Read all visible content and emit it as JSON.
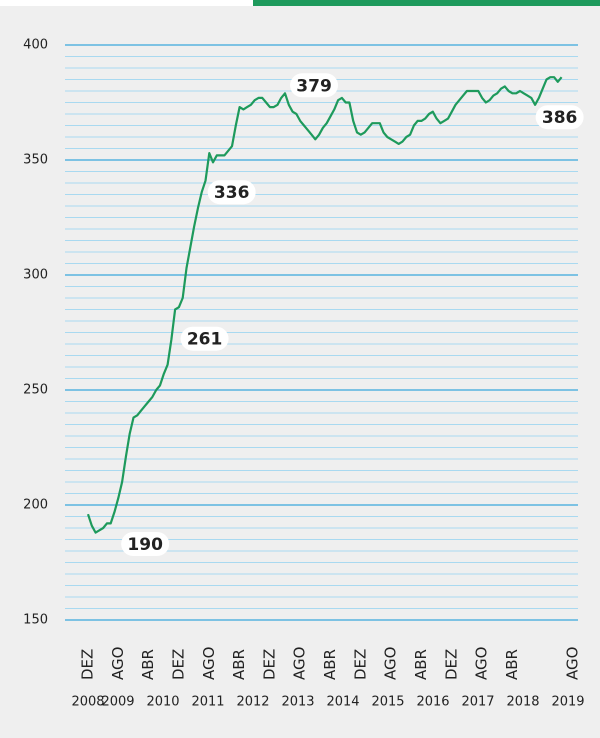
{
  "chart_data": {
    "type": "line",
    "color": "#1e9a5c",
    "x": [
      "2008-12",
      "2009-01",
      "2009-02",
      "2009-03",
      "2009-04",
      "2009-05",
      "2009-06",
      "2009-07",
      "2009-08",
      "2009-09",
      "2009-10",
      "2009-11",
      "2009-12",
      "2010-01",
      "2010-02",
      "2010-03",
      "2010-04",
      "2010-05",
      "2010-06",
      "2010-07",
      "2010-08",
      "2010-09",
      "2010-10",
      "2010-11",
      "2010-12",
      "2011-01",
      "2011-02",
      "2011-03",
      "2011-04",
      "2011-05",
      "2011-06",
      "2011-07",
      "2011-08",
      "2011-09",
      "2011-10",
      "2011-11",
      "2011-12",
      "2012-01",
      "2012-02",
      "2012-03",
      "2012-04",
      "2012-05",
      "2012-06",
      "2012-07",
      "2012-08",
      "2012-09",
      "2012-10",
      "2012-11",
      "2012-12",
      "2013-01",
      "2013-02",
      "2013-03",
      "2013-04",
      "2013-05",
      "2013-06",
      "2013-07",
      "2013-08",
      "2013-09",
      "2013-10",
      "2013-11",
      "2013-12",
      "2014-01",
      "2014-02",
      "2014-03",
      "2014-04",
      "2014-05",
      "2014-06",
      "2014-07",
      "2014-08",
      "2014-09",
      "2014-10",
      "2014-11",
      "2014-12",
      "2015-01",
      "2015-02",
      "2015-03",
      "2015-04",
      "2015-05",
      "2015-06",
      "2015-07",
      "2015-08",
      "2015-09",
      "2015-10",
      "2015-11",
      "2015-12",
      "2016-01",
      "2016-02",
      "2016-03",
      "2016-04",
      "2016-05",
      "2016-06",
      "2016-07",
      "2016-08",
      "2016-09",
      "2016-10",
      "2016-11",
      "2016-12",
      "2017-01",
      "2017-02",
      "2017-03",
      "2017-04",
      "2017-05",
      "2017-06",
      "2017-07",
      "2017-08",
      "2017-09",
      "2017-10",
      "2017-11",
      "2017-12",
      "2018-01",
      "2018-02",
      "2018-03",
      "2018-04",
      "2018-05",
      "2018-06",
      "2018-07",
      "2018-08",
      "2018-09",
      "2018-10",
      "2018-11",
      "2018-12",
      "2019-01",
      "2019-02",
      "2019-03",
      "2019-04",
      "2019-05"
    ],
    "values": [
      196,
      191,
      188,
      189,
      190,
      192,
      192,
      197,
      203,
      210,
      221,
      231,
      238,
      239,
      241,
      243,
      245,
      247,
      250,
      252,
      257,
      261,
      272,
      285,
      286,
      290,
      303,
      312,
      321,
      329,
      336,
      341,
      353,
      349,
      352,
      352,
      352,
      354,
      356,
      365,
      373,
      372,
      373,
      374,
      376,
      377,
      377,
      375,
      373,
      373,
      374,
      377,
      379,
      374,
      371,
      370,
      367,
      365,
      363,
      361,
      359,
      361,
      364,
      366,
      369,
      372,
      376,
      377,
      375,
      375,
      367,
      362,
      361,
      362,
      364,
      366,
      366,
      366,
      362,
      360,
      359,
      358,
      357,
      358,
      360,
      361,
      365,
      367,
      367,
      368,
      370,
      371,
      368,
      366,
      367,
      368,
      371,
      374,
      376,
      378,
      380,
      380,
      380,
      380,
      377,
      375,
      376,
      378,
      379,
      381,
      382,
      380,
      379,
      379,
      380,
      379,
      378,
      377,
      374,
      377,
      381,
      385,
      386,
      386,
      384,
      386
    ],
    "value_labels": [
      null,
      null,
      null,
      null,
      "190",
      null,
      null,
      null,
      null,
      null,
      null,
      null,
      null,
      null,
      null,
      null,
      null,
      null,
      null,
      null,
      null,
      "261",
      null,
      null,
      null,
      null,
      null,
      null,
      null,
      null,
      "336",
      null,
      null,
      null,
      null,
      null,
      null,
      null,
      null,
      null,
      null,
      null,
      null,
      null,
      null,
      null,
      null,
      null,
      null,
      null,
      null,
      null,
      "379",
      null,
      null,
      null,
      null,
      null,
      null,
      null,
      null,
      null,
      null,
      null,
      null,
      null,
      null,
      null,
      null,
      null,
      null,
      null,
      null,
      null,
      null,
      null,
      null,
      null,
      null,
      null,
      null,
      null,
      null,
      null,
      null,
      null,
      null,
      null,
      null,
      null,
      null,
      null,
      null,
      null,
      null,
      null,
      null,
      null,
      null,
      null,
      null,
      null,
      null,
      null,
      null,
      null,
      null,
      null,
      null,
      null,
      null,
      null,
      null,
      null,
      null,
      null,
      null,
      null,
      null,
      null,
      null,
      null,
      null,
      null,
      null,
      "386"
    ],
    "xlim": [
      "2008-12",
      "2019-08"
    ],
    "xticks": [
      {
        "value": "2008-12",
        "label": "DEZ"
      },
      {
        "value": "2009-08",
        "label": "AGO"
      },
      {
        "value": "2010-04",
        "label": "ABR"
      },
      {
        "value": "2010-12",
        "label": "DEZ"
      },
      {
        "value": "2011-08",
        "label": "AGO"
      },
      {
        "value": "2012-04",
        "label": "ABR"
      },
      {
        "value": "2012-12",
        "label": "DEZ"
      },
      {
        "value": "2013-08",
        "label": "AGO"
      },
      {
        "value": "2014-04",
        "label": "ABR"
      },
      {
        "value": "2014-12",
        "label": "DEZ"
      },
      {
        "value": "2015-08",
        "label": "AGO"
      },
      {
        "value": "2016-04",
        "label": "ABR"
      },
      {
        "value": "2016-12",
        "label": "DEZ"
      },
      {
        "value": "2017-08",
        "label": "AGO"
      },
      {
        "value": "2018-04",
        "label": "ABR"
      },
      {
        "value": "2019-08",
        "label": "AGO"
      }
    ],
    "years": [
      "2008",
      "2009",
      "2010",
      "2011",
      "2012",
      "2013",
      "2014",
      "2015",
      "2016",
      "2017",
      "2018",
      "2019"
    ],
    "ylim": [
      150,
      400
    ],
    "yticks": [
      150,
      200,
      250,
      300,
      350,
      400
    ],
    "grid": true,
    "minor_grid": 5
  }
}
